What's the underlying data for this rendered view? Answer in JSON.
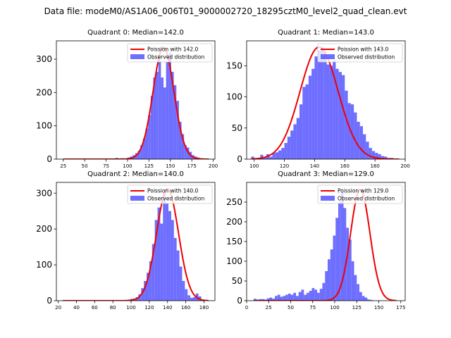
{
  "figure_title": "Data file: modeM0/AS1A06_006T01_9000002720_18295cztM0_level2_quad_clean.evt",
  "colors": {
    "fit": "#ee0000",
    "hist": "#5555ff"
  },
  "chart_data": [
    {
      "type": "histogram",
      "title": "Quadrant 0: Median=142.0",
      "legend": {
        "fit": "Poission with 142.0",
        "hist": "Observed distribution",
        "placement": "upper-right"
      },
      "mean": 142.0,
      "xlim": [
        17,
        202
      ],
      "ylim": [
        0,
        355
      ],
      "xticks": [
        25,
        50,
        75,
        100,
        125,
        150,
        175,
        200
      ],
      "yticks": [
        0,
        100,
        200,
        300
      ],
      "bins": {
        "start": 100,
        "width": 3,
        "values": [
          5,
          8,
          12,
          18,
          25,
          42,
          62,
          92,
          132,
          190,
          245,
          262,
          295,
          245,
          215,
          292,
          318,
          262,
          222,
          175,
          112,
          75,
          42,
          35,
          22,
          12,
          8,
          5,
          3
        ]
      },
      "extra_bins": [
        {
          "x": 86,
          "w": 3,
          "v": 4
        },
        {
          "x": 92,
          "w": 3,
          "v": 3
        }
      ],
      "fit_curve": {
        "amp": 335,
        "mu": 142,
        "sigma": 12.2,
        "x_range": [
          25,
          195
        ]
      }
    },
    {
      "type": "histogram",
      "title": "Quadrant 1: Median=143.0",
      "legend": {
        "fit": "Poission with 143.0",
        "hist": "Observed distribution",
        "placement": "upper-right"
      },
      "mean": 143.0,
      "xlim": [
        95,
        200
      ],
      "ylim": [
        0,
        190
      ],
      "xticks": [
        100,
        120,
        140,
        160,
        180,
        200
      ],
      "yticks": [
        0,
        50,
        100,
        150
      ],
      "bins": {
        "start": 98,
        "width": 2,
        "values": [
          4,
          1,
          2,
          7,
          3,
          8,
          4,
          10,
          11,
          14,
          18,
          26,
          36,
          46,
          56,
          66,
          88,
          116,
          120,
          134,
          145,
          165,
          175,
          180,
          172,
          152,
          150,
          158,
          145,
          140,
          135,
          110,
          90,
          88,
          75,
          60,
          53,
          40,
          28,
          18,
          13,
          10,
          8,
          5,
          4,
          2,
          2,
          1,
          1
        ]
      },
      "extra_bins": [],
      "fit_curve": {
        "amp": 180,
        "mu": 143,
        "sigma": 12.6,
        "x_range": [
          98,
          196
        ]
      }
    },
    {
      "type": "histogram",
      "title": "Quadrant 2: Median=140.0",
      "legend": {
        "fit": "Poission with 140.0",
        "hist": "Observed distribution",
        "placement": "upper-right"
      },
      "mean": 140.0,
      "xlim": [
        18,
        192
      ],
      "ylim": [
        0,
        330
      ],
      "xticks": [
        20,
        40,
        60,
        80,
        100,
        120,
        140,
        160,
        180
      ],
      "yticks": [
        0,
        100,
        200,
        300
      ],
      "bins": {
        "start": 96,
        "width": 3,
        "values": [
          3,
          5,
          6,
          10,
          18,
          35,
          55,
          78,
          110,
          158,
          225,
          260,
          215,
          300,
          272,
          250,
          225,
          175,
          140,
          95,
          55,
          32,
          15,
          8,
          10,
          20,
          12
        ]
      },
      "extra_bins": [],
      "fit_curve": {
        "amp": 312,
        "mu": 140,
        "sigma": 12.0,
        "x_range": [
          25,
          185
        ]
      }
    },
    {
      "type": "histogram",
      "title": "Quadrant 3: Median=129.0",
      "legend": {
        "fit": "Poission with 129.0",
        "hist": "Observed distribution",
        "placement": "upper-right"
      },
      "mean": 129.0,
      "xlim": [
        0,
        180
      ],
      "ylim": [
        0,
        300
      ],
      "xticks": [
        0,
        25,
        50,
        75,
        100,
        125,
        150,
        175
      ],
      "yticks": [
        0,
        50,
        100,
        150,
        200,
        250
      ],
      "bins": {
        "start": 8,
        "width": 3,
        "values": [
          5,
          3,
          4,
          4,
          3,
          6,
          8,
          5,
          12,
          15,
          10,
          12,
          15,
          18,
          15,
          20,
          12,
          22,
          28,
          15,
          20,
          25,
          32,
          28,
          20,
          30,
          45,
          75,
          105,
          130,
          165,
          210,
          250,
          275,
          235,
          185,
          155,
          100,
          65,
          42,
          22,
          12,
          8,
          3,
          2
        ]
      },
      "extra_bins": [],
      "fit_curve": {
        "amp": 282,
        "mu": 129,
        "sigma": 11.0,
        "x_range": [
          8,
          170
        ]
      }
    }
  ]
}
